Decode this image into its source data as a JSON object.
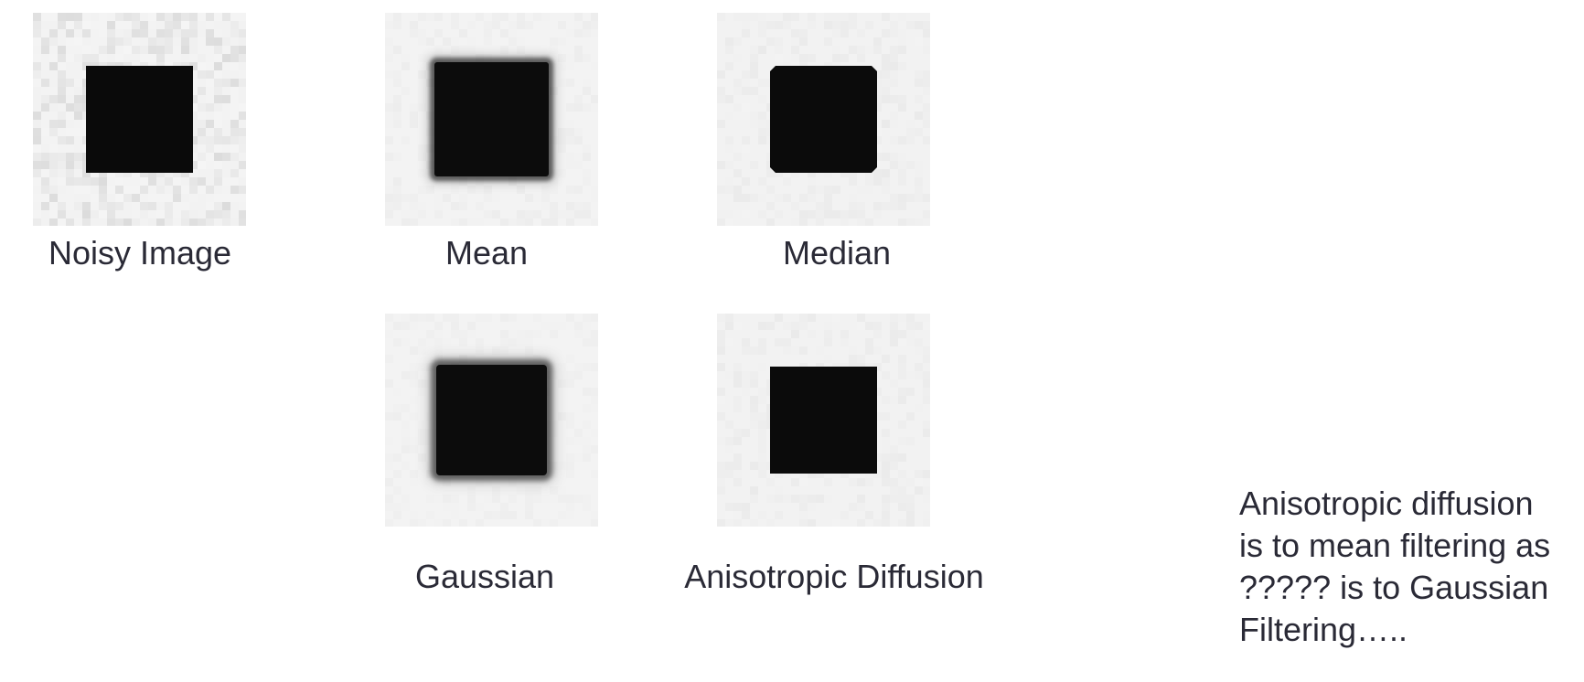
{
  "panels": {
    "noisy": {
      "caption": "Noisy Image"
    },
    "mean": {
      "caption": "Mean"
    },
    "median": {
      "caption": "Median"
    },
    "gaussian": {
      "caption": "Gaussian"
    },
    "anisotropic": {
      "caption": "Anisotropic Diffusion"
    }
  },
  "note": {
    "lines": [
      "Anisotropic diffusion",
      "is to mean filtering as",
      "????? is to Gaussian",
      "Filtering….."
    ]
  }
}
